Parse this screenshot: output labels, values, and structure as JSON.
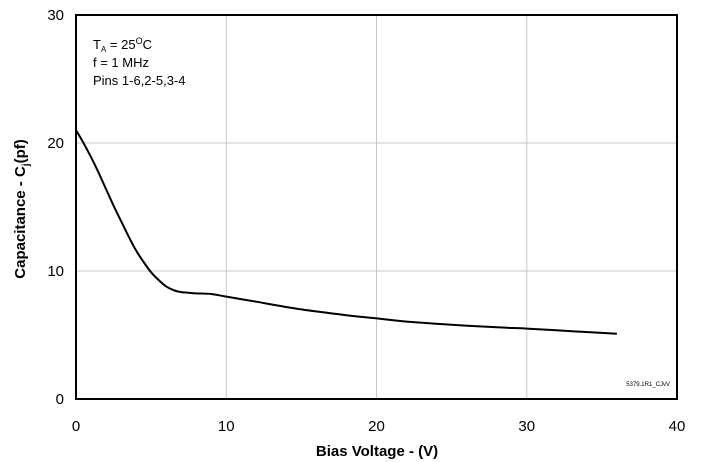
{
  "chart_data": {
    "type": "line",
    "xlabel": "Bias Voltage - (V)",
    "ylabel_parts": [
      "Capacitance - C",
      "j",
      "(pf)"
    ],
    "xlim": [
      0,
      40
    ],
    "ylim": [
      0,
      30
    ],
    "x_ticks": [
      "0",
      "10",
      "20",
      "30",
      "40"
    ],
    "y_ticks": [
      "0",
      "10",
      "20",
      "30"
    ],
    "grid": true,
    "annotations": {
      "temp_parts": [
        "T",
        "A",
        " = 25",
        "O",
        "C"
      ],
      "freq": "f = 1 MHz",
      "pins": "Pins 1-6,2-5,3-4"
    },
    "doc_code": "5379.1R1_CJvV",
    "series": [
      {
        "x": [
          0,
          0.5,
          1,
          1.5,
          2,
          2.5,
          3,
          3.5,
          4,
          4.5,
          5,
          5.5,
          6,
          6.5,
          7,
          7.5,
          8,
          9,
          10,
          12,
          15,
          18,
          20,
          22,
          25,
          28,
          30,
          33,
          36
        ],
        "y": [
          21.0,
          20.0,
          18.9,
          17.7,
          16.4,
          15.1,
          13.9,
          12.7,
          11.6,
          10.7,
          9.9,
          9.3,
          8.8,
          8.5,
          8.35,
          8.3,
          8.25,
          8.2,
          8.0,
          7.6,
          7.0,
          6.55,
          6.3,
          6.05,
          5.8,
          5.6,
          5.5,
          5.3,
          5.1
        ]
      }
    ]
  }
}
